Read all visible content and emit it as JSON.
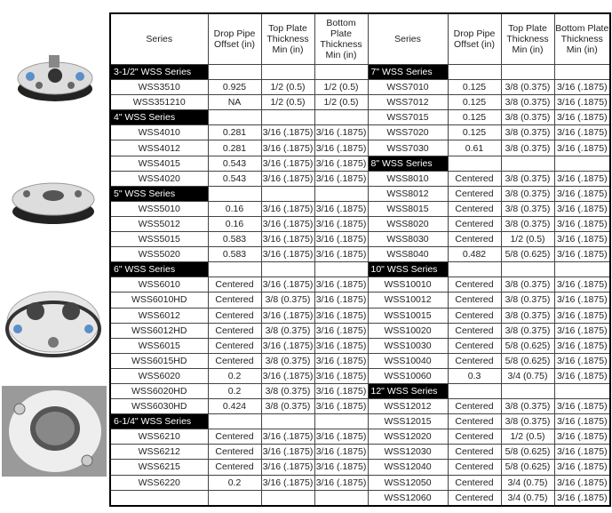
{
  "table": {
    "headers": [
      "Series",
      "Drop Pipe Offset (in)",
      "Top Plate Thickness Min (in)",
      "Bottom Plate Thickness Min (in)",
      "Series",
      "Drop Pipe Offset (in)",
      "Top Plate Thickness Min (in)",
      "Bottom Plate Thickness Min (in)"
    ],
    "rows": [
      {
        "left": {
          "section": "3-1/2\" WSS Series"
        },
        "right": {
          "section": "7\" WSS Series"
        }
      },
      {
        "left": {
          "cells": [
            "WSS3510",
            "0.925",
            "1/2 (0.5)",
            "1/2 (0.5)"
          ]
        },
        "right": {
          "cells": [
            "WSS7010",
            "0.125",
            "3/8 (0.375)",
            "3/16 (.1875)"
          ]
        }
      },
      {
        "left": {
          "cells": [
            "WSS351210",
            "NA",
            "1/2 (0.5)",
            "1/2 (0.5)"
          ]
        },
        "right": {
          "cells": [
            "WSS7012",
            "0.125",
            "3/8 (0.375)",
            "3/16 (.1875)"
          ]
        }
      },
      {
        "left": {
          "section": "4\" WSS Series"
        },
        "right": {
          "cells": [
            "WSS7015",
            "0.125",
            "3/8 (0.375)",
            "3/16 (.1875)"
          ]
        }
      },
      {
        "left": {
          "cells": [
            "WSS4010",
            "0.281",
            "3/16 (.1875)",
            "3/16 (.1875)"
          ]
        },
        "right": {
          "cells": [
            "WSS7020",
            "0.125",
            "3/8 (0.375)",
            "3/16 (.1875)"
          ]
        }
      },
      {
        "left": {
          "cells": [
            "WSS4012",
            "0.281",
            "3/16 (.1875)",
            "3/16 (.1875)"
          ]
        },
        "right": {
          "cells": [
            "WSS7030",
            "0.61",
            "3/8 (0.375)",
            "3/16 (.1875)"
          ]
        }
      },
      {
        "left": {
          "cells": [
            "WSS4015",
            "0.543",
            "3/16 (.1875)",
            "3/16 (.1875)"
          ]
        },
        "right": {
          "section": "8\" WSS Series"
        }
      },
      {
        "left": {
          "cells": [
            "WSS4020",
            "0.543",
            "3/16 (.1875)",
            "3/16 (.1875)"
          ]
        },
        "right": {
          "cells": [
            "WSS8010",
            "Centered",
            "3/8 (0.375)",
            "3/16 (.1875)"
          ]
        }
      },
      {
        "left": {
          "section": "5\" WSS Series"
        },
        "right": {
          "cells": [
            "WSS8012",
            "Centered",
            "3/8 (0.375)",
            "3/16 (.1875)"
          ]
        }
      },
      {
        "left": {
          "cells": [
            "WSS5010",
            "0.16",
            "3/16 (.1875)",
            "3/16 (.1875)"
          ]
        },
        "right": {
          "cells": [
            "WSS8015",
            "Centered",
            "3/8 (0.375)",
            "3/16 (.1875)"
          ]
        }
      },
      {
        "left": {
          "cells": [
            "WSS5012",
            "0.16",
            "3/16 (.1875)",
            "3/16 (.1875)"
          ]
        },
        "right": {
          "cells": [
            "WSS8020",
            "Centered",
            "3/8 (0.375)",
            "3/16 (.1875)"
          ]
        }
      },
      {
        "left": {
          "cells": [
            "WSS5015",
            "0.583",
            "3/16 (.1875)",
            "3/16 (.1875)"
          ]
        },
        "right": {
          "cells": [
            "WSS8030",
            "Centered",
            "1/2 (0.5)",
            "3/16 (.1875)"
          ]
        }
      },
      {
        "left": {
          "cells": [
            "WSS5020",
            "0.583",
            "3/16 (.1875)",
            "3/16 (.1875)"
          ]
        },
        "right": {
          "cells": [
            "WSS8040",
            "0.482",
            "5/8 (0.625)",
            "3/16 (.1875)"
          ]
        }
      },
      {
        "left": {
          "section": "6\" WSS Series"
        },
        "right": {
          "section": "10\" WSS Series"
        }
      },
      {
        "left": {
          "cells": [
            "WSS6010",
            "Centered",
            "3/16 (.1875)",
            "3/16 (.1875)"
          ]
        },
        "right": {
          "cells": [
            "WSS10010",
            "Centered",
            "3/8 (0.375)",
            "3/16 (.1875)"
          ]
        }
      },
      {
        "left": {
          "cells": [
            "WSS6010HD",
            "Centered",
            "3/8 (0.375)",
            "3/16 (.1875)"
          ]
        },
        "right": {
          "cells": [
            "WSS10012",
            "Centered",
            "3/8 (0.375)",
            "3/16 (.1875)"
          ]
        }
      },
      {
        "left": {
          "cells": [
            "WSS6012",
            "Centered",
            "3/16 (.1875)",
            "3/16 (.1875)"
          ]
        },
        "right": {
          "cells": [
            "WSS10015",
            "Centered",
            "3/8 (0.375)",
            "3/16 (.1875)"
          ]
        }
      },
      {
        "left": {
          "cells": [
            "WSS6012HD",
            "Centered",
            "3/8 (0.375)",
            "3/16 (.1875)"
          ]
        },
        "right": {
          "cells": [
            "WSS10020",
            "Centered",
            "3/8 (0.375)",
            "3/16 (.1875)"
          ]
        }
      },
      {
        "left": {
          "cells": [
            "WSS6015",
            "Centered",
            "3/16 (.1875)",
            "3/16 (.1875)"
          ]
        },
        "right": {
          "cells": [
            "WSS10030",
            "Centered",
            "5/8 (0.625)",
            "3/16 (.1875)"
          ]
        }
      },
      {
        "left": {
          "cells": [
            "WSS6015HD",
            "Centered",
            "3/8 (0.375)",
            "3/16 (.1875)"
          ]
        },
        "right": {
          "cells": [
            "WSS10040",
            "Centered",
            "5/8 (0.625)",
            "3/16 (.1875)"
          ]
        }
      },
      {
        "left": {
          "cells": [
            "WSS6020",
            "0.2",
            "3/16 (.1875)",
            "3/16 (.1875)"
          ]
        },
        "right": {
          "cells": [
            "WSS10060",
            "0.3",
            "3/4 (0.75)",
            "3/16 (.1875)"
          ]
        }
      },
      {
        "left": {
          "cells": [
            "WSS6020HD",
            "0.2",
            "3/8 (0.375)",
            "3/16 (.1875)"
          ]
        },
        "right": {
          "section": "12\" WSS Series"
        }
      },
      {
        "left": {
          "cells": [
            "WSS6030HD",
            "0.424",
            "3/8 (0.375)",
            "3/16 (.1875)"
          ]
        },
        "right": {
          "cells": [
            "WSS12012",
            "Centered",
            "3/8 (0.375)",
            "3/16 (.1875)"
          ]
        }
      },
      {
        "left": {
          "section": "6-1/4\" WSS Series"
        },
        "right": {
          "cells": [
            "WSS12015",
            "Centered",
            "3/8 (0.375)",
            "3/16 (.1875)"
          ]
        }
      },
      {
        "left": {
          "cells": [
            "WSS6210",
            "Centered",
            "3/16 (.1875)",
            "3/16 (.1875)"
          ]
        },
        "right": {
          "cells": [
            "WSS12020",
            "Centered",
            "1/2 (0.5)",
            "3/16 (.1875)"
          ]
        }
      },
      {
        "left": {
          "cells": [
            "WSS6212",
            "Centered",
            "3/16 (.1875)",
            "3/16 (.1875)"
          ]
        },
        "right": {
          "cells": [
            "WSS12030",
            "Centered",
            "5/8 (0.625)",
            "3/16 (.1875)"
          ]
        }
      },
      {
        "left": {
          "cells": [
            "WSS6215",
            "Centered",
            "3/16 (.1875)",
            "3/16 (.1875)"
          ]
        },
        "right": {
          "cells": [
            "WSS12040",
            "Centered",
            "5/8 (0.625)",
            "3/16 (.1875)"
          ]
        }
      },
      {
        "left": {
          "cells": [
            "WSS6220",
            "0.2",
            "3/16 (.1875)",
            "3/16 (.1875)"
          ]
        },
        "right": {
          "cells": [
            "WSS12050",
            "Centered",
            "3/4 (0.75)",
            "3/16 (.1875)"
          ]
        }
      },
      {
        "left": null,
        "right": {
          "cells": [
            "WSS12060",
            "Centered",
            "3/4 (0.75)",
            "3/16 (.1875)"
          ]
        }
      }
    ]
  }
}
